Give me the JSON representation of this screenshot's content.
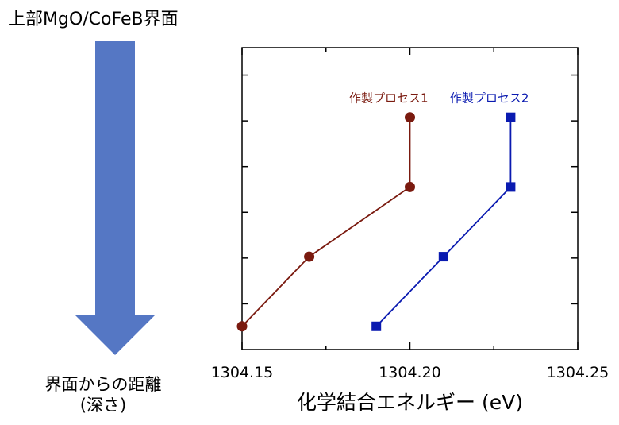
{
  "labels": {
    "top": "上部MgO/CoFeB界面",
    "depth_line1": "界面からの距離",
    "depth_line2": "(深さ)"
  },
  "colors": {
    "arrow": "#5577c4",
    "series1": "#7a1a0f",
    "series2": "#0a1ab0"
  },
  "chart_data": {
    "type": "line",
    "xlabel": "化学結合エネルギー (eV)",
    "ylabel": "",
    "xlim": [
      1304.15,
      1304.25
    ],
    "x_ticks": [
      "1304.15",
      "1304.20",
      "1304.25"
    ],
    "grid": false,
    "series": [
      {
        "name": "作製プロセス1",
        "marker": "circle",
        "points": [
          [
            1304.15,
            1
          ],
          [
            1304.17,
            2.5
          ],
          [
            1304.2,
            4
          ],
          [
            1304.2,
            5.5
          ]
        ]
      },
      {
        "name": "作製プロセス2",
        "marker": "square",
        "points": [
          [
            1304.19,
            1
          ],
          [
            1304.21,
            2.5
          ],
          [
            1304.23,
            4
          ],
          [
            1304.23,
            5.5
          ]
        ]
      }
    ]
  }
}
